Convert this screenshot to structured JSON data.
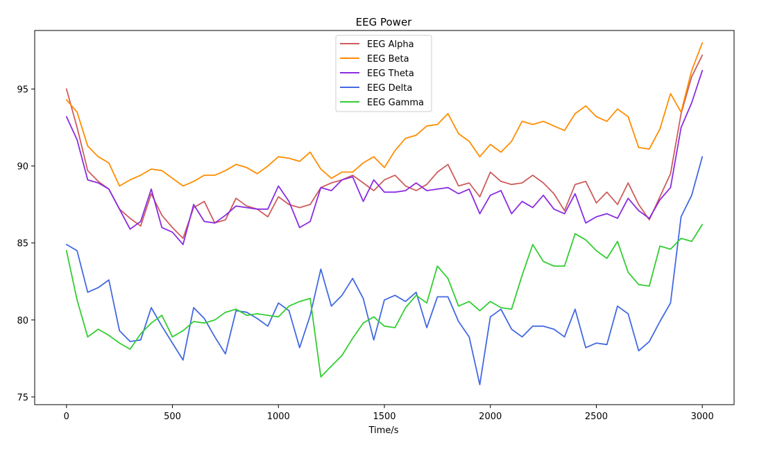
{
  "chart_data": {
    "type": "line",
    "title": "EEG Power",
    "xlabel": "Time/s",
    "ylabel": "",
    "xlim": [
      -150,
      3150
    ],
    "ylim": [
      74.5,
      98.8
    ],
    "x_ticks": [
      0,
      500,
      1000,
      1500,
      2000,
      2500,
      3000
    ],
    "y_ticks": [
      75,
      80,
      85,
      90,
      95
    ],
    "x_tick_labels": [
      "0",
      "500",
      "1000",
      "1500",
      "2000",
      "2500",
      "3000"
    ],
    "y_tick_labels": [
      "75",
      "80",
      "85",
      "90",
      "95"
    ],
    "grid": false,
    "legend_position": "top-center",
    "x": [
      0,
      50,
      100,
      150,
      200,
      250,
      300,
      350,
      400,
      450,
      500,
      550,
      600,
      650,
      700,
      750,
      800,
      850,
      900,
      950,
      1000,
      1050,
      1100,
      1150,
      1200,
      1250,
      1300,
      1350,
      1400,
      1450,
      1500,
      1550,
      1600,
      1650,
      1700,
      1750,
      1800,
      1850,
      1900,
      1950,
      2000,
      2050,
      2100,
      2150,
      2200,
      2250,
      2300,
      2350,
      2400,
      2450,
      2500,
      2550,
      2600,
      2650,
      2700,
      2750,
      2800,
      2850,
      2900,
      2950,
      3000
    ],
    "series": [
      {
        "name": "EEG Alpha",
        "color": "#cd5c5c",
        "values": [
          95.0,
          92.5,
          89.7,
          89.0,
          88.5,
          87.2,
          86.6,
          86.1,
          88.2,
          86.8,
          86.0,
          85.3,
          87.3,
          87.7,
          86.3,
          86.5,
          87.9,
          87.4,
          87.2,
          86.7,
          88.0,
          87.5,
          87.3,
          87.5,
          88.6,
          88.9,
          89.1,
          89.4,
          88.9,
          88.4,
          89.1,
          89.4,
          88.7,
          88.4,
          88.8,
          89.6,
          90.1,
          88.7,
          88.9,
          88.0,
          89.6,
          89.0,
          88.8,
          88.9,
          89.4,
          88.9,
          88.2,
          87.1,
          88.8,
          89.0,
          87.6,
          88.3,
          87.5,
          88.9,
          87.5,
          86.5,
          88.0,
          89.5,
          93.4,
          95.8,
          97.2
        ]
      },
      {
        "name": "EEG Beta",
        "color": "#ff8c00",
        "values": [
          94.3,
          93.5,
          91.3,
          90.6,
          90.2,
          88.7,
          89.1,
          89.4,
          89.8,
          89.7,
          89.2,
          88.7,
          89.0,
          89.4,
          89.4,
          89.7,
          90.1,
          89.9,
          89.5,
          90.0,
          90.6,
          90.5,
          90.3,
          90.9,
          89.8,
          89.2,
          89.6,
          89.6,
          90.2,
          90.6,
          89.9,
          91.0,
          91.8,
          92.0,
          92.6,
          92.7,
          93.4,
          92.1,
          91.6,
          90.6,
          91.4,
          90.9,
          91.6,
          92.9,
          92.7,
          92.9,
          92.6,
          92.3,
          93.4,
          93.9,
          93.2,
          92.9,
          93.7,
          93.2,
          91.2,
          91.1,
          92.4,
          94.7,
          93.5,
          96.2,
          98.0
        ]
      },
      {
        "name": "EEG Theta",
        "color": "#8a2be2",
        "values": [
          93.2,
          91.7,
          89.1,
          88.9,
          88.5,
          87.2,
          85.9,
          86.4,
          88.5,
          86.0,
          85.7,
          84.9,
          87.5,
          86.4,
          86.3,
          86.8,
          87.4,
          87.3,
          87.2,
          87.2,
          88.7,
          87.7,
          86.0,
          86.4,
          88.6,
          88.4,
          89.1,
          89.3,
          87.7,
          89.1,
          88.3,
          88.3,
          88.4,
          88.9,
          88.4,
          88.5,
          88.6,
          88.2,
          88.5,
          86.9,
          88.1,
          88.4,
          86.9,
          87.7,
          87.3,
          88.1,
          87.2,
          86.9,
          88.2,
          86.3,
          86.7,
          86.9,
          86.6,
          87.9,
          87.1,
          86.6,
          87.8,
          88.6,
          92.5,
          94.1,
          96.2
        ]
      },
      {
        "name": "EEG Delta",
        "color": "#4169e1",
        "values": [
          84.9,
          84.5,
          81.8,
          82.1,
          82.6,
          79.3,
          78.6,
          78.7,
          80.8,
          79.6,
          78.5,
          77.4,
          80.8,
          80.1,
          78.9,
          77.8,
          80.6,
          80.5,
          80.1,
          79.6,
          81.1,
          80.6,
          78.2,
          80.3,
          83.3,
          80.9,
          81.6,
          82.7,
          81.4,
          78.7,
          81.3,
          81.6,
          81.2,
          81.8,
          79.5,
          81.5,
          81.5,
          79.9,
          78.9,
          75.8,
          80.2,
          80.7,
          79.4,
          78.9,
          79.6,
          79.6,
          79.4,
          78.9,
          80.7,
          78.2,
          78.5,
          78.4,
          80.9,
          80.4,
          78.0,
          78.6,
          79.9,
          81.1,
          86.7,
          88.1,
          90.6
        ]
      },
      {
        "name": "EEG Gamma",
        "color": "#32cd32",
        "values": [
          84.5,
          81.3,
          78.9,
          79.4,
          79.0,
          78.5,
          78.1,
          79.1,
          79.8,
          80.3,
          78.9,
          79.3,
          79.9,
          79.8,
          80.0,
          80.5,
          80.7,
          80.3,
          80.4,
          80.3,
          80.2,
          80.9,
          81.2,
          81.4,
          76.3,
          77.0,
          77.7,
          78.8,
          79.8,
          80.2,
          79.6,
          79.5,
          80.8,
          81.6,
          81.1,
          83.5,
          82.7,
          80.9,
          81.2,
          80.6,
          81.2,
          80.8,
          80.7,
          82.9,
          84.9,
          83.8,
          83.5,
          83.5,
          85.6,
          85.2,
          84.5,
          84.0,
          85.1,
          83.1,
          82.3,
          82.2,
          84.8,
          84.6,
          85.3,
          85.1,
          86.2
        ]
      }
    ]
  }
}
